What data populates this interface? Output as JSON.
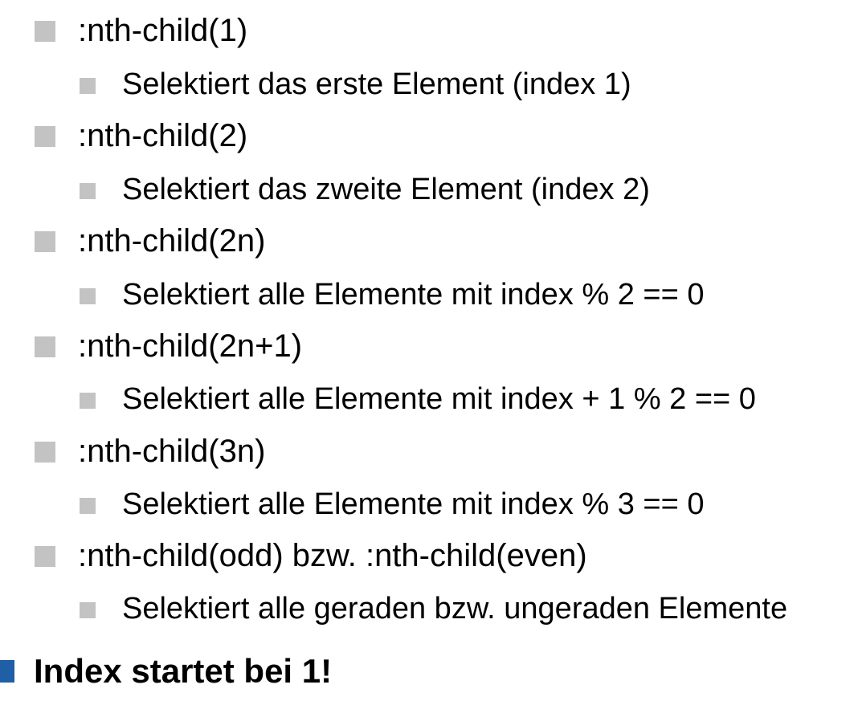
{
  "items": [
    {
      "label": ":nth-child(1)",
      "sub": "Selektiert das erste Element (index 1)"
    },
    {
      "label": ":nth-child(2)",
      "sub": "Selektiert das zweite Element (index 2)"
    },
    {
      "label": ":nth-child(2n)",
      "sub": "Selektiert alle Elemente mit index % 2 == 0"
    },
    {
      "label": ":nth-child(2n+1)",
      "sub": "Selektiert alle Elemente mit index + 1 % 2 == 0"
    },
    {
      "label": ":nth-child(3n)",
      "sub": "Selektiert alle Elemente mit index % 3 == 0"
    },
    {
      "label": ":nth-child(odd)  bzw. :nth-child(even)",
      "sub": "Selektiert alle geraden bzw. ungeraden Elemente"
    }
  ],
  "note": "Index startet bei 1!",
  "colors": {
    "gray_bullet": "#c3c3c3",
    "blue_bullet": "#1f5fa5",
    "text": "#000000"
  }
}
